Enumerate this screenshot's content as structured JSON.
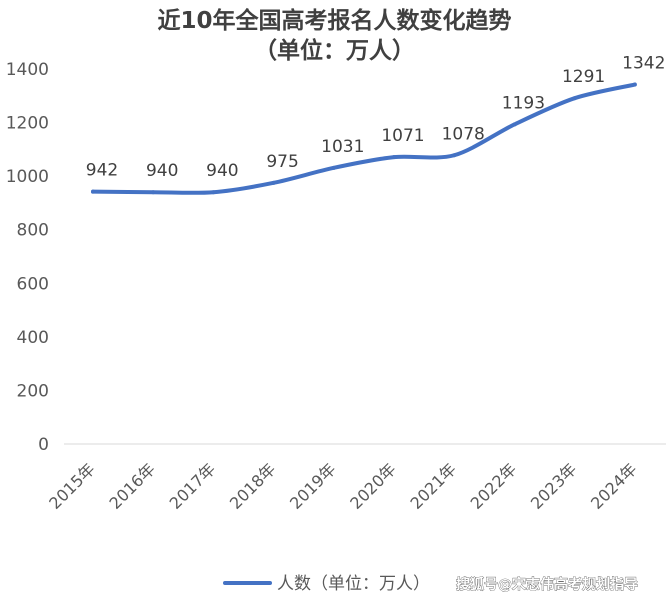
{
  "chart_data": {
    "type": "line",
    "title": "近10年全国高考报名人数变化趋势",
    "subtitle": "（单位：万人）",
    "categories": [
      "2015年",
      "2016年",
      "2017年",
      "2018年",
      "2019年",
      "2020年",
      "2021年",
      "2022年",
      "2023年",
      "2024年"
    ],
    "series": [
      {
        "name": "人数（单位：万人）",
        "values": [
          942,
          940,
          940,
          975,
          1031,
          1071,
          1078,
          1193,
          1291,
          1342
        ],
        "color": "#4472C4"
      }
    ],
    "y_ticks": [
      0,
      200,
      400,
      600,
      800,
      1000,
      1200,
      1400
    ],
    "ylim": [
      0,
      1400
    ],
    "grid": false,
    "legend_position": "bottom"
  },
  "watermark": "搜狐号@宋志伟高考规划指导",
  "colors": {
    "line": "#4472C4",
    "axis": "#d9d9d9",
    "text": "#595959"
  }
}
